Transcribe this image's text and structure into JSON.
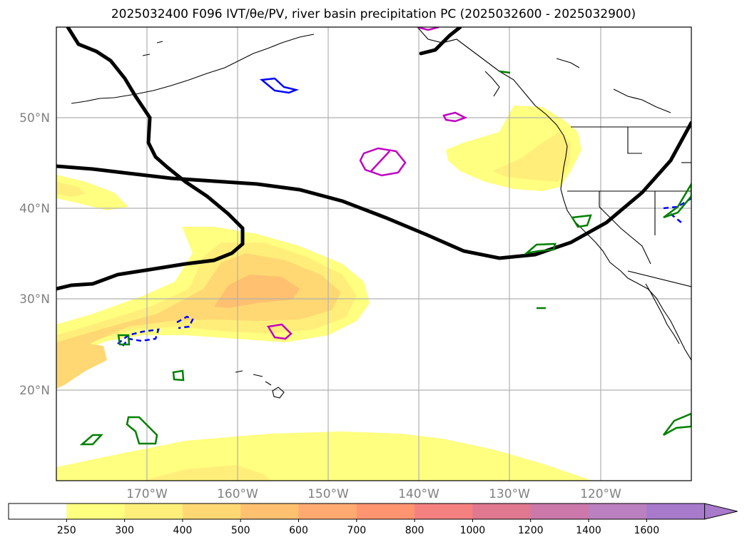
{
  "title": "2025032400 F096 IVT/θe/PV, river basin precipitation PC (2025032600 - 2025032900)",
  "map": {
    "lat_labels": [
      {
        "value": 50,
        "text": "50°N"
      },
      {
        "value": 40,
        "text": "40°N"
      },
      {
        "value": 30,
        "text": "30°N"
      },
      {
        "value": 20,
        "text": "20°N"
      }
    ],
    "lon_labels": [
      {
        "value": -170,
        "text": "170°W"
      },
      {
        "value": -160,
        "text": "160°W"
      },
      {
        "value": -150,
        "text": "150°W"
      },
      {
        "value": -140,
        "text": "140°W"
      },
      {
        "value": -130,
        "text": "130°W"
      },
      {
        "value": -120,
        "text": "120°W"
      }
    ],
    "extent": {
      "lon_min": -180,
      "lon_max": -110,
      "lat_min": 10,
      "lat_max": 60
    },
    "colors": {
      "theta_e_contour": "#000000",
      "pv_contour": "#0000ff",
      "pc_contour": "#008000",
      "magenta_contour": "#c000c0",
      "coastline": "#000000",
      "grid": "#b0b0b0"
    }
  },
  "colorbar": {
    "levels": [
      "250",
      "300",
      "400",
      "500",
      "600",
      "700",
      "800",
      "1000",
      "1200",
      "1400",
      "1600"
    ],
    "colors": [
      "#ffffff",
      "#ffff80",
      "#ffef7a",
      "#ffd873",
      "#ffc070",
      "#ffaa70",
      "#ff9470",
      "#f58080",
      "#e07890",
      "#cc78aa",
      "#bb80c0",
      "#a77acc"
    ]
  }
}
